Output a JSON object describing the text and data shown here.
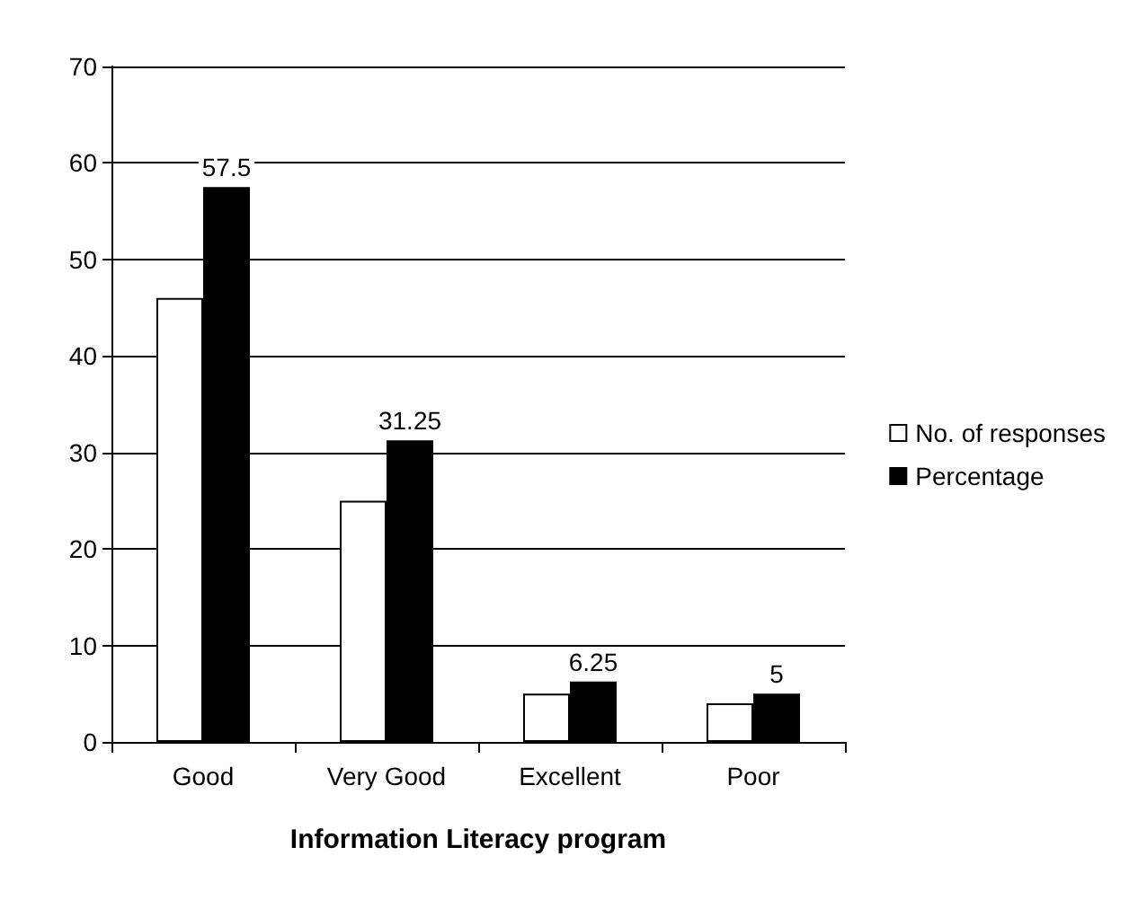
{
  "chart_data": {
    "type": "bar",
    "xlabel": "Information Literacy program",
    "categories": [
      "Good",
      "Very Good",
      "Excellent",
      "Poor"
    ],
    "series": [
      {
        "name": "No. of responses",
        "color": "#ffffff",
        "values": [
          46,
          25,
          5,
          4
        ]
      },
      {
        "name": "Percentage",
        "color": "#000000",
        "values": [
          57.5,
          31.25,
          6.25,
          5
        ],
        "value_labels": [
          "57.5",
          "31.25",
          "6.25",
          "5"
        ]
      }
    ],
    "ylim": [
      0,
      70
    ],
    "yticks": [
      0,
      10,
      20,
      30,
      40,
      50,
      60,
      70
    ],
    "grid": "y",
    "legend": "right"
  }
}
